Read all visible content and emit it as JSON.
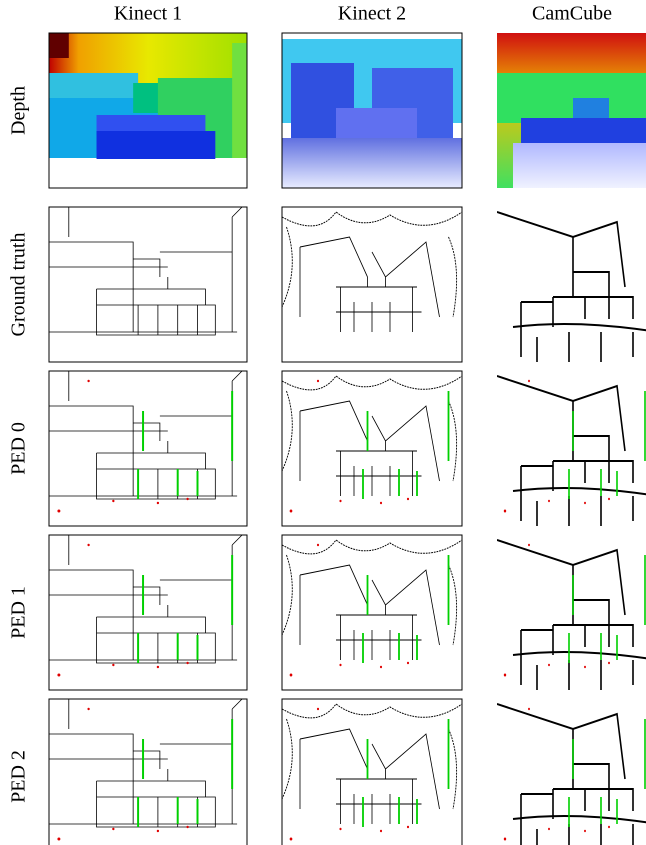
{
  "columns": [
    "Kinect 1",
    "Kinect 2",
    "CamCube"
  ],
  "rows": [
    "Depth",
    "Ground truth",
    "PED 0",
    "PED 1",
    "PED 2"
  ]
}
